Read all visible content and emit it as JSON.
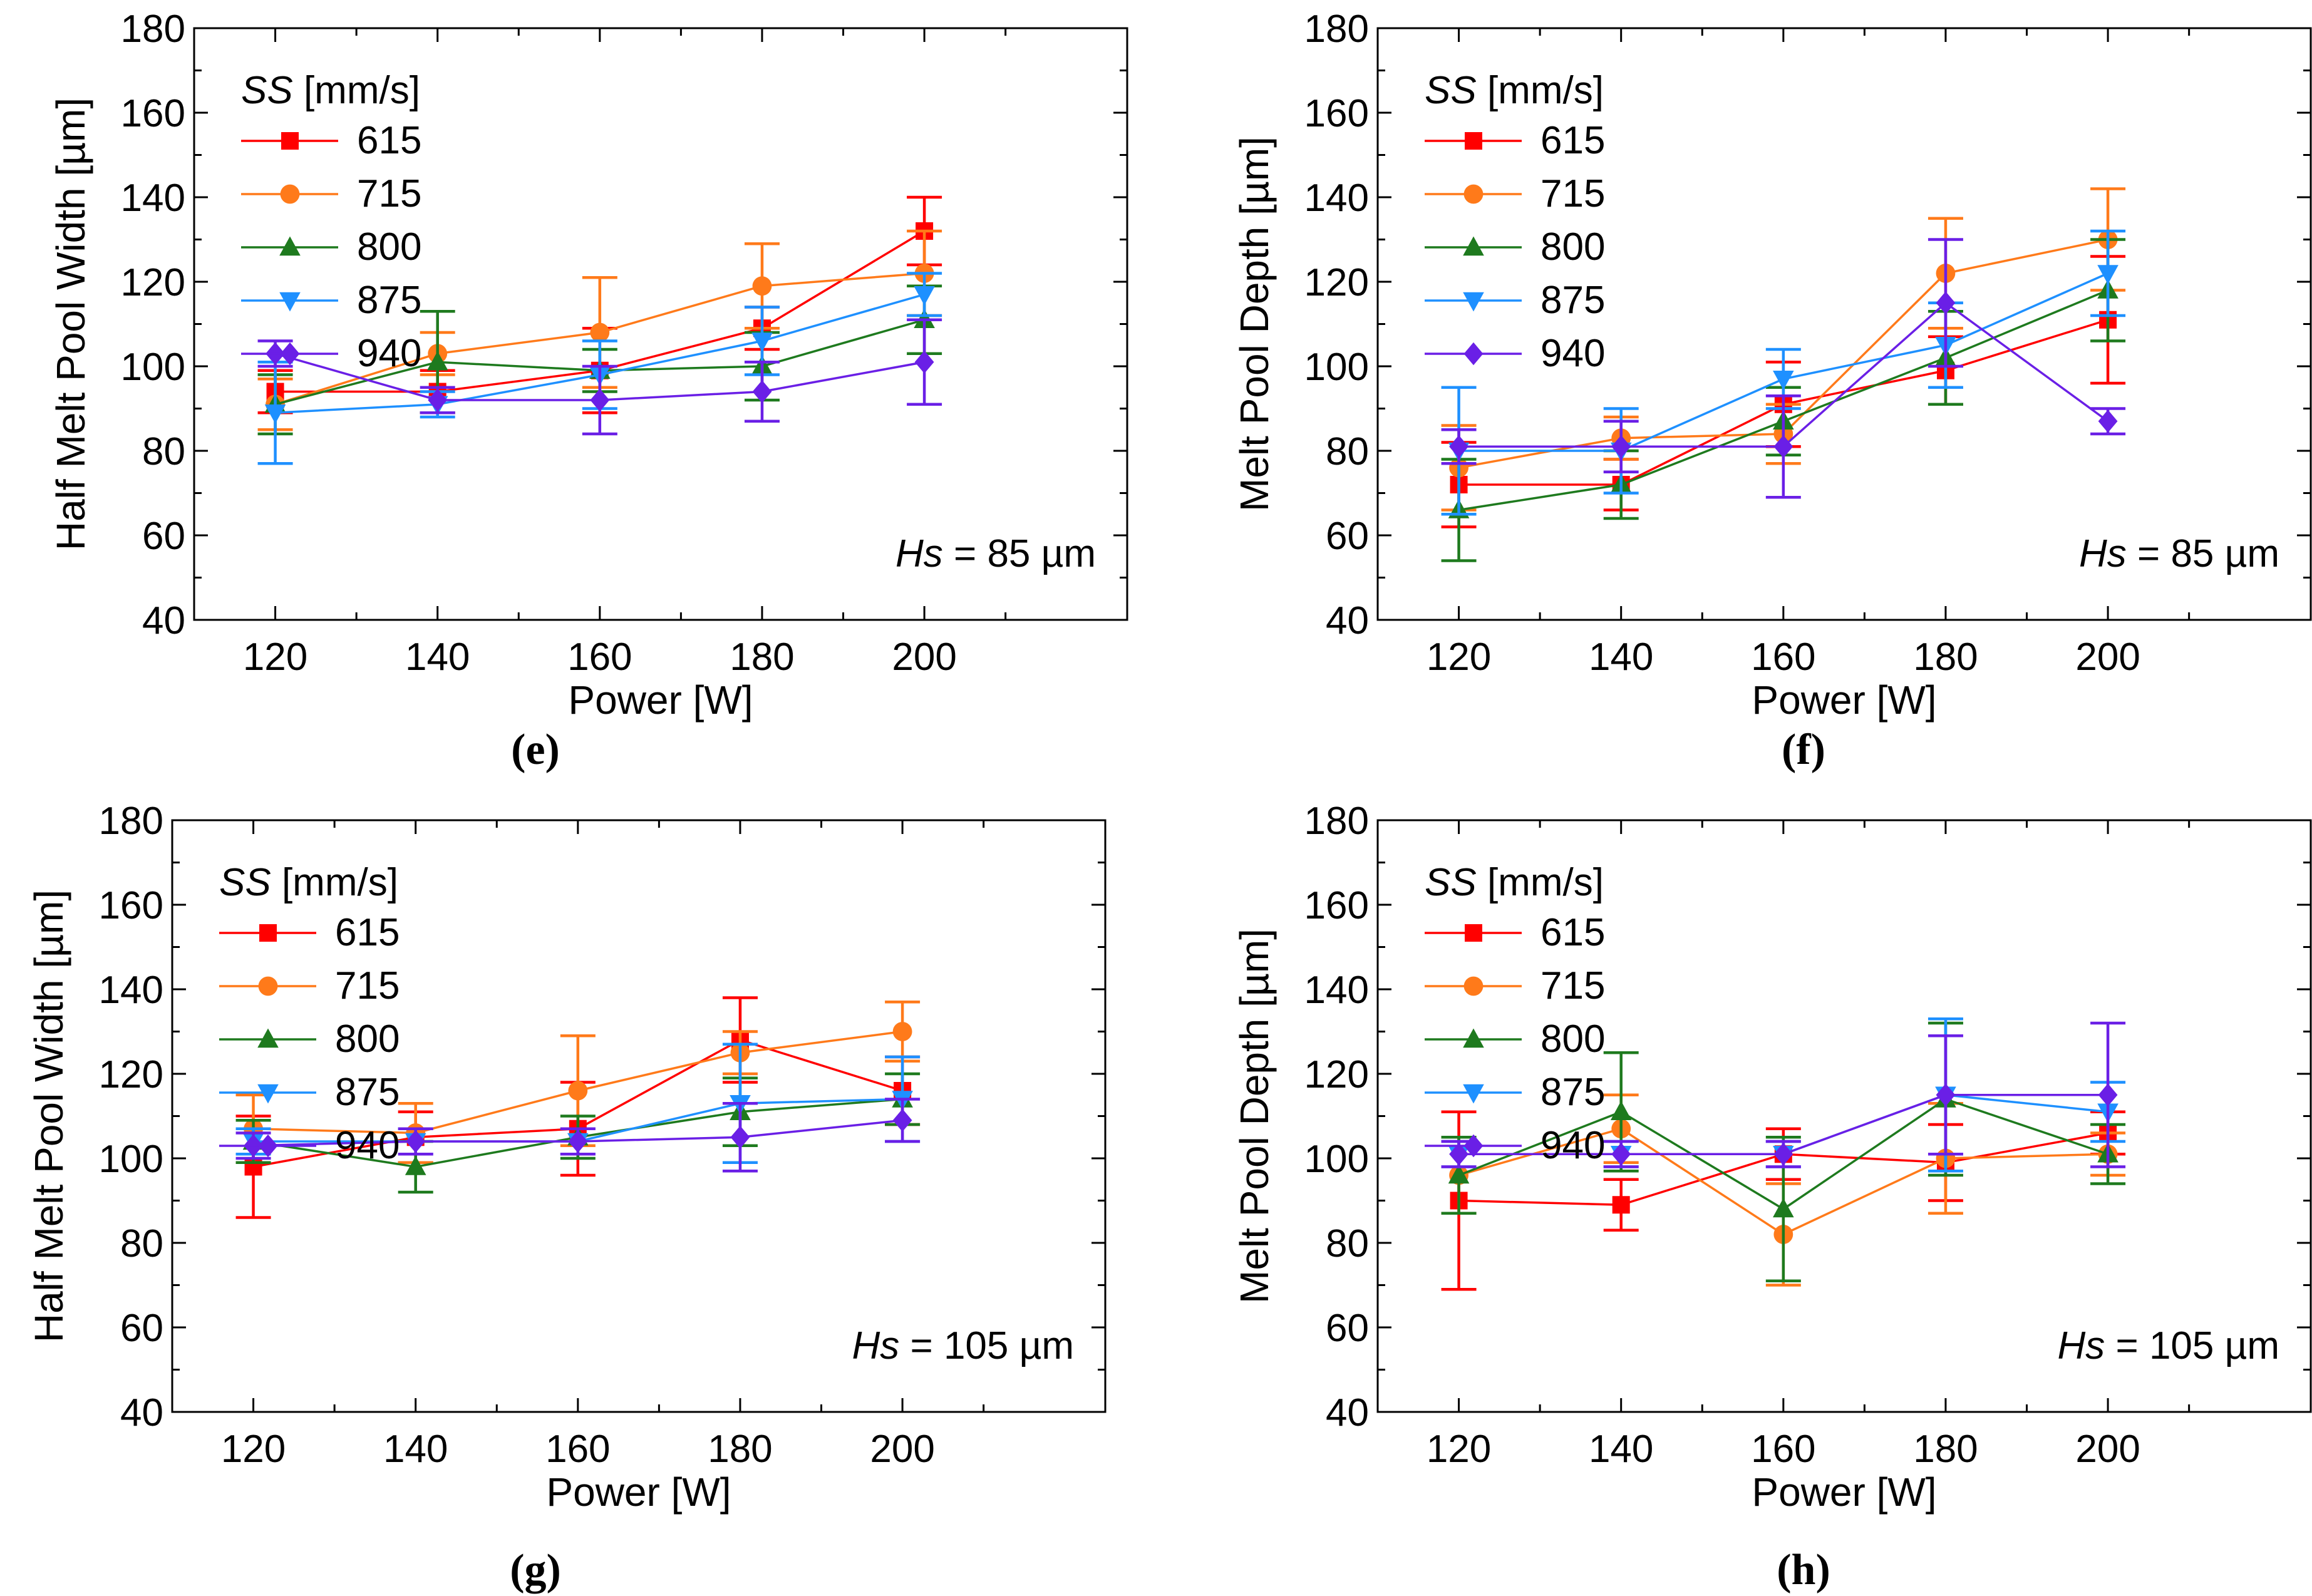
{
  "figure": {
    "series_colors": {
      "615": "#ff0000",
      "715": "#ff7a1a",
      "800": "#1e7a1e",
      "875": "#1e90ff",
      "940": "#6a1fe6"
    },
    "series_markers": {
      "615": "square",
      "715": "circle",
      "800": "triangle-up",
      "875": "triangle-down",
      "940": "diamond"
    }
  },
  "chart_data": [
    {
      "panel": "(e)",
      "type": "line",
      "xlabel": "Power [W]",
      "ylabel": "Half Melt Pool Width [µm]",
      "xlim": [
        110,
        225
      ],
      "ylim": [
        40,
        180
      ],
      "xticks": [
        120,
        140,
        160,
        180,
        200
      ],
      "yticks": [
        40,
        60,
        80,
        100,
        120,
        140,
        160,
        180
      ],
      "legend_title_italic": "SS",
      "legend_title_rest": " [mm/s]",
      "annotation_italic": "Hs",
      "annotation_rest": " = 85 µm",
      "x": [
        120,
        140,
        160,
        180,
        200
      ],
      "series": [
        {
          "name": "615",
          "values": [
            94,
            94,
            99,
            109,
            132
          ],
          "errors": [
            5,
            5,
            10,
            5,
            8
          ]
        },
        {
          "name": "715",
          "values": [
            91,
            103,
            108,
            119,
            122
          ],
          "errors": [
            6,
            5,
            13,
            10,
            10
          ]
        },
        {
          "name": "800",
          "values": [
            91,
            101,
            99,
            100,
            111
          ],
          "errors": [
            7,
            12,
            5,
            8,
            8
          ]
        },
        {
          "name": "875",
          "values": [
            89,
            91,
            98,
            106,
            117
          ],
          "errors": [
            12,
            3,
            8,
            8,
            5
          ]
        },
        {
          "name": "940",
          "values": [
            103,
            92,
            92,
            94,
            101
          ],
          "errors": [
            3,
            3,
            8,
            7,
            10
          ]
        }
      ]
    },
    {
      "panel": "(f)",
      "type": "line",
      "xlabel": "Power [W]",
      "ylabel": "Melt Pool Depth [µm]",
      "xlim": [
        110,
        225
      ],
      "ylim": [
        40,
        180
      ],
      "xticks": [
        120,
        140,
        160,
        180,
        200
      ],
      "yticks": [
        40,
        60,
        80,
        100,
        120,
        140,
        160,
        180
      ],
      "legend_title_italic": "SS",
      "legend_title_rest": " [mm/s]",
      "annotation_italic": "Hs",
      "annotation_rest": " = 85 µm",
      "x": [
        120,
        140,
        160,
        180,
        200
      ],
      "series": [
        {
          "name": "615",
          "values": [
            72,
            72,
            91,
            99,
            111
          ],
          "errors": [
            10,
            6,
            10,
            8,
            15
          ]
        },
        {
          "name": "715",
          "values": [
            76,
            83,
            84,
            122,
            130
          ],
          "errors": [
            10,
            5,
            7,
            13,
            12
          ]
        },
        {
          "name": "800",
          "values": [
            66,
            72,
            87,
            102,
            118
          ],
          "errors": [
            12,
            8,
            8,
            11,
            12
          ]
        },
        {
          "name": "875",
          "values": [
            80,
            80,
            97,
            105,
            122
          ],
          "errors": [
            15,
            10,
            7,
            10,
            10
          ]
        },
        {
          "name": "940",
          "values": [
            81,
            81,
            81,
            115,
            87
          ],
          "errors": [
            4,
            6,
            12,
            15,
            3
          ]
        }
      ]
    },
    {
      "panel": "(g)",
      "type": "line",
      "xlabel": "Power [W]",
      "ylabel": "Half Melt Pool Width [µm]",
      "xlim": [
        110,
        225
      ],
      "ylim": [
        40,
        180
      ],
      "xticks": [
        120,
        140,
        160,
        180,
        200
      ],
      "yticks": [
        40,
        60,
        80,
        100,
        120,
        140,
        160,
        180
      ],
      "legend_title_italic": "SS",
      "legend_title_rest": " [mm/s]",
      "annotation_italic": "Hs",
      "annotation_rest": " = 105 µm",
      "x": [
        120,
        140,
        160,
        180,
        200
      ],
      "series": [
        {
          "name": "615",
          "values": [
            98,
            105,
            107,
            128,
            116
          ],
          "errors": [
            12,
            6,
            11,
            10,
            8
          ]
        },
        {
          "name": "715",
          "values": [
            107,
            106,
            116,
            125,
            130
          ],
          "errors": [
            8,
            7,
            13,
            5,
            7
          ]
        },
        {
          "name": "800",
          "values": [
            104,
            98,
            105,
            111,
            114
          ],
          "errors": [
            5,
            6,
            5,
            8,
            6
          ]
        },
        {
          "name": "875",
          "values": [
            104,
            104,
            104,
            113,
            114
          ],
          "errors": [
            3,
            3,
            3,
            14,
            10
          ]
        },
        {
          "name": "940",
          "values": [
            103,
            104,
            104,
            105,
            109
          ],
          "errors": [
            3,
            3,
            3,
            8,
            5
          ]
        }
      ]
    },
    {
      "panel": "(h)",
      "type": "line",
      "xlabel": "Power [W]",
      "ylabel": "Melt Pool Depth [µm]",
      "xlim": [
        110,
        225
      ],
      "ylim": [
        40,
        180
      ],
      "xticks": [
        120,
        140,
        160,
        180,
        200
      ],
      "yticks": [
        40,
        60,
        80,
        100,
        120,
        140,
        160,
        180
      ],
      "legend_title_italic": "SS",
      "legend_title_rest": " [mm/s]",
      "annotation_italic": "Hs",
      "annotation_rest": " = 105 µm",
      "x": [
        120,
        140,
        160,
        180,
        200
      ],
      "series": [
        {
          "name": "615",
          "values": [
            90,
            89,
            101,
            99,
            106
          ],
          "errors": [
            21,
            6,
            6,
            9,
            5
          ]
        },
        {
          "name": "715",
          "values": [
            96,
            107,
            82,
            100,
            101
          ],
          "errors": [
            9,
            8,
            12,
            13,
            5
          ]
        },
        {
          "name": "800",
          "values": [
            96,
            111,
            88,
            114,
            101
          ],
          "errors": [
            9,
            14,
            17,
            18,
            7
          ]
        },
        {
          "name": "875",
          "values": [
            101,
            101,
            101,
            115,
            111
          ],
          "errors": [
            3,
            3,
            3,
            18,
            7
          ]
        },
        {
          "name": "940",
          "values": [
            101,
            101,
            101,
            115,
            115
          ],
          "errors": [
            3,
            3,
            3,
            14,
            17
          ]
        }
      ]
    }
  ]
}
